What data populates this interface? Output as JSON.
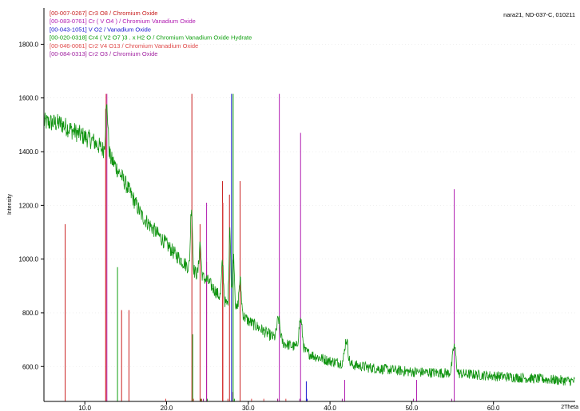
{
  "chart_data": {
    "type": "line",
    "sample_label": "nara21, ND-037-C, 010211",
    "ylabel": "Intensity",
    "xlabel": "2Theta",
    "xlim": [
      5,
      70
    ],
    "ylim": [
      470,
      1935
    ],
    "x_ticks": [
      10,
      20,
      30,
      40,
      50,
      60
    ],
    "x_tick_labels": [
      "10.0",
      "20.0",
      "30.0",
      "40.0",
      "50.0",
      "60.0"
    ],
    "y_ticks": [
      600,
      800,
      1000,
      1200,
      1400,
      1600,
      1800
    ],
    "y_tick_labels": [
      "600.0",
      "800.0",
      "1000.0",
      "1200.0",
      "1400.0",
      "1600.0",
      "1800.0"
    ],
    "colors": {
      "pattern": "#109410",
      "cr3o8": "#c81e1e",
      "crvo4": "#b01ab0",
      "vo2": "#1818d0",
      "cr4v2o7": "#10a010",
      "cr2v4o13": "#e04848",
      "cr2o3": "#a020a0"
    },
    "pattern": {
      "baseline": [
        [
          5,
          1510
        ],
        [
          7,
          1505
        ],
        [
          9,
          1470
        ],
        [
          11,
          1440
        ],
        [
          12.5,
          1400
        ],
        [
          13.5,
          1360
        ],
        [
          15,
          1280
        ],
        [
          17,
          1160
        ],
        [
          19,
          1090
        ],
        [
          21,
          1020
        ],
        [
          23,
          960
        ],
        [
          25,
          920
        ],
        [
          26,
          880
        ],
        [
          27,
          840
        ],
        [
          28,
          820
        ],
        [
          29,
          800
        ],
        [
          30,
          770
        ],
        [
          32,
          730
        ],
        [
          34,
          690
        ],
        [
          36,
          670
        ],
        [
          38,
          640
        ],
        [
          40,
          620
        ],
        [
          42,
          610
        ],
        [
          45,
          595
        ],
        [
          50,
          580
        ],
        [
          55,
          575
        ],
        [
          60,
          565
        ],
        [
          65,
          555
        ],
        [
          70,
          545
        ]
      ],
      "peaks": [
        [
          12.7,
          170,
          0.15
        ],
        [
          23.05,
          240,
          0.12
        ],
        [
          24.1,
          120,
          0.12
        ],
        [
          26.85,
          140,
          0.12
        ],
        [
          27.75,
          300,
          0.1
        ],
        [
          28.2,
          200,
          0.12
        ],
        [
          29.0,
          120,
          0.15
        ],
        [
          33.7,
          80,
          0.2
        ],
        [
          36.4,
          110,
          0.2
        ],
        [
          42.0,
          90,
          0.2
        ],
        [
          55.2,
          100,
          0.2
        ]
      ]
    },
    "legend": [
      {
        "code": "[00-007-0267]",
        "text": "Cr3 O8 / Chromium Oxide",
        "color_key": "cr3o8"
      },
      {
        "code": "[00-083-0761]",
        "text": "Cr ( V O4 ) / Chromium Vanadium Oxide",
        "color_key": "crvo4"
      },
      {
        "code": "[00-043-1051]",
        "text": "V O2 / Vanadium Oxide",
        "color_key": "vo2"
      },
      {
        "code": "[00-020-0318]",
        "text": "Cr4 ( V2 O7 )3 . x H2 O / Chromium Vanadium Oxide Hydrate",
        "color_key": "cr4v2o7"
      },
      {
        "code": "[00-046-0061]",
        "text": "Cr2 V4 O13 / Chromium Vanadium Oxide",
        "color_key": "cr2v4o13"
      },
      {
        "code": "[00-084-0313]",
        "text": "Cr2 O3 / Chromium Oxide",
        "color_key": "cr2o3"
      }
    ],
    "reference_lines": [
      {
        "color_key": "cr3o8",
        "lines": [
          [
            7.6,
            1130
          ],
          [
            12.55,
            1560
          ],
          [
            14.5,
            810
          ],
          [
            15.4,
            810
          ],
          [
            23.1,
            1615
          ],
          [
            24.1,
            1130
          ],
          [
            24.9,
            990
          ],
          [
            26.85,
            1290
          ],
          [
            27.7,
            1240
          ],
          [
            29.0,
            1290
          ]
        ]
      },
      {
        "color_key": "crvo4",
        "lines": [
          [
            12.7,
            1615
          ],
          [
            24.9,
            1210
          ],
          [
            28.1,
            505
          ],
          [
            33.8,
            1615
          ],
          [
            36.4,
            1470
          ],
          [
            41.8,
            550
          ],
          [
            50.6,
            550
          ],
          [
            55.2,
            1260
          ]
        ]
      },
      {
        "color_key": "vo2",
        "lines": [
          [
            27.95,
            1615
          ],
          [
            37.1,
            545
          ],
          [
            37.2,
            480
          ]
        ]
      },
      {
        "color_key": "cr4v2o7",
        "lines": [
          [
            14.0,
            970
          ],
          [
            23.2,
            720
          ],
          [
            24.2,
            480
          ],
          [
            25.0,
            480
          ],
          [
            28.15,
            1615
          ],
          [
            28.3,
            480
          ]
        ]
      },
      {
        "color_key": "cr2v4o13",
        "lines": [
          [
            12.6,
            1615
          ],
          [
            19.9,
            480
          ],
          [
            23.3,
            480
          ],
          [
            24.3,
            480
          ],
          [
            26.9,
            1210
          ],
          [
            27.5,
            480
          ],
          [
            30.4,
            480
          ],
          [
            31.9,
            480
          ],
          [
            33.6,
            480
          ],
          [
            34.6,
            480
          ]
        ]
      },
      {
        "color_key": "cr2o3",
        "lines": [
          [
            24.5,
            480
          ],
          [
            33.6,
            480
          ],
          [
            36.3,
            480
          ],
          [
            41.5,
            480
          ],
          [
            50.2,
            480
          ],
          [
            54.9,
            480
          ]
        ]
      }
    ]
  }
}
